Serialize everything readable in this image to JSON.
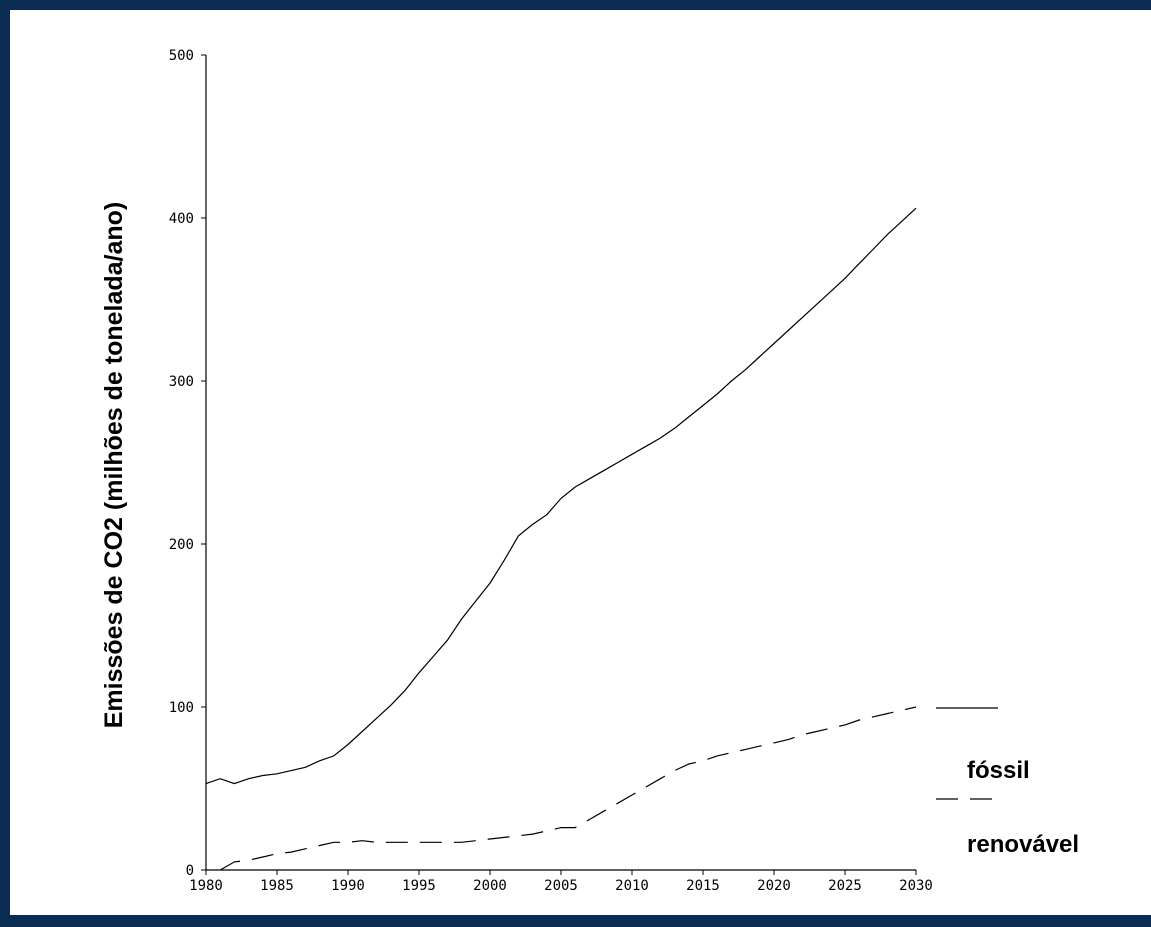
{
  "chart_data": {
    "type": "line",
    "title": "",
    "xlabel": "",
    "ylabel": "Emissões de CO2 (milhões de tonelada/ano)",
    "xlim": [
      1980,
      2030
    ],
    "ylim": [
      0,
      500
    ],
    "x_ticks": [
      "1980",
      "1985",
      "1990",
      "1995",
      "2000",
      "2005",
      "2010",
      "2015",
      "2020",
      "2025",
      "2030"
    ],
    "y_ticks": [
      "0",
      "100",
      "200",
      "300",
      "400",
      "500"
    ],
    "grid": false,
    "legend_position": "right",
    "series": [
      {
        "name": "fóssil",
        "style": "solid",
        "color": "#000000",
        "points": [
          [
            1980,
            53
          ],
          [
            1981,
            56
          ],
          [
            1982,
            53
          ],
          [
            1983,
            56
          ],
          [
            1984,
            58
          ],
          [
            1985,
            59
          ],
          [
            1986,
            61
          ],
          [
            1987,
            63
          ],
          [
            1988,
            67
          ],
          [
            1989,
            70
          ],
          [
            1990,
            77
          ],
          [
            1991,
            85
          ],
          [
            1992,
            93
          ],
          [
            1993,
            101
          ],
          [
            1994,
            110
          ],
          [
            1995,
            121
          ],
          [
            1996,
            131
          ],
          [
            1997,
            141
          ],
          [
            1998,
            154
          ],
          [
            1999,
            165
          ],
          [
            2000,
            176
          ],
          [
            2001,
            190
          ],
          [
            2002,
            205
          ],
          [
            2003,
            212
          ],
          [
            2004,
            218
          ],
          [
            2005,
            228
          ],
          [
            2006,
            235
          ],
          [
            2007,
            240
          ],
          [
            2008,
            245
          ],
          [
            2009,
            250
          ],
          [
            2010,
            255
          ],
          [
            2011,
            260
          ],
          [
            2012,
            265
          ],
          [
            2013,
            271
          ],
          [
            2014,
            278
          ],
          [
            2015,
            285
          ],
          [
            2016,
            292
          ],
          [
            2017,
            300
          ],
          [
            2018,
            307
          ],
          [
            2019,
            315
          ],
          [
            2020,
            323
          ],
          [
            2021,
            331
          ],
          [
            2022,
            339
          ],
          [
            2023,
            347
          ],
          [
            2024,
            355
          ],
          [
            2025,
            363
          ],
          [
            2026,
            372
          ],
          [
            2027,
            381
          ],
          [
            2028,
            390
          ],
          [
            2029,
            398
          ],
          [
            2030,
            406
          ]
        ]
      },
      {
        "name": "renovável",
        "style": "dashed",
        "color": "#000000",
        "points": [
          [
            1981,
            0
          ],
          [
            1982,
            5
          ],
          [
            1983,
            6
          ],
          [
            1984,
            8
          ],
          [
            1985,
            10
          ],
          [
            1986,
            11
          ],
          [
            1987,
            13
          ],
          [
            1988,
            15
          ],
          [
            1989,
            17
          ],
          [
            1990,
            17
          ],
          [
            1991,
            18
          ],
          [
            1992,
            17
          ],
          [
            1993,
            17
          ],
          [
            1994,
            17
          ],
          [
            1995,
            17
          ],
          [
            1996,
            17
          ],
          [
            1997,
            17
          ],
          [
            1998,
            17
          ],
          [
            1999,
            18
          ],
          [
            2000,
            19
          ],
          [
            2001,
            20
          ],
          [
            2002,
            21
          ],
          [
            2003,
            22
          ],
          [
            2004,
            24
          ],
          [
            2005,
            26
          ],
          [
            2006,
            26
          ],
          [
            2007,
            31
          ],
          [
            2008,
            36
          ],
          [
            2009,
            41
          ],
          [
            2010,
            46
          ],
          [
            2011,
            51
          ],
          [
            2012,
            56
          ],
          [
            2013,
            61
          ],
          [
            2014,
            65
          ],
          [
            2015,
            67
          ],
          [
            2016,
            70
          ],
          [
            2017,
            72
          ],
          [
            2018,
            74
          ],
          [
            2019,
            76
          ],
          [
            2020,
            78
          ],
          [
            2021,
            80
          ],
          [
            2022,
            83
          ],
          [
            2023,
            85
          ],
          [
            2024,
            87
          ],
          [
            2025,
            89
          ],
          [
            2026,
            92
          ],
          [
            2027,
            94
          ],
          [
            2028,
            96
          ],
          [
            2029,
            98
          ],
          [
            2030,
            100
          ]
        ]
      }
    ]
  }
}
